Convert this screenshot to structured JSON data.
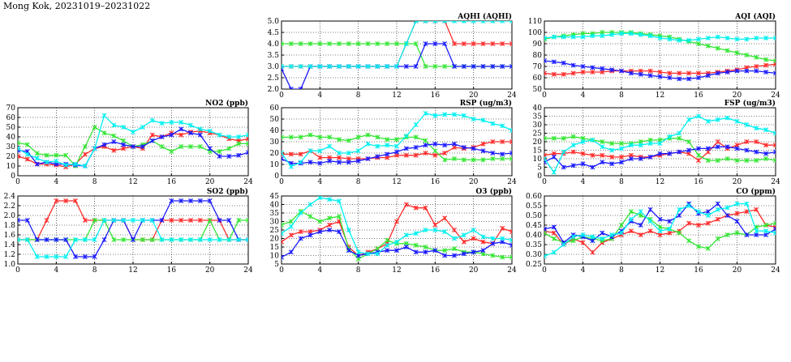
{
  "page": {
    "title": "Mong Kok, 20231019–20231022"
  },
  "chart_data": [
    {
      "type": "line",
      "title": "AQHI (AQHI)",
      "xlim": [
        0,
        24
      ],
      "ylim": [
        2.0,
        5.0
      ],
      "xticks": [
        "0",
        "4",
        "8",
        "12",
        "16",
        "20",
        "24"
      ],
      "yticks": [
        "2.0",
        "2.5",
        "3.0",
        "3.5",
        "4.0",
        "4.5",
        "5.0"
      ],
      "grid": true,
      "series": [
        {
          "color": "#ff2a2a",
          "values": [
            3,
            3,
            3,
            3,
            3,
            3,
            3,
            3,
            3,
            3,
            3,
            3,
            3,
            4,
            5,
            5,
            5,
            5,
            4,
            4,
            4,
            4,
            4,
            4,
            4
          ]
        },
        {
          "color": "#33e633",
          "values": [
            4,
            4,
            4,
            4,
            4,
            4,
            4,
            4,
            4,
            4,
            4,
            4,
            4,
            4,
            4,
            3,
            3,
            3,
            3,
            3,
            3,
            3,
            3,
            3,
            3
          ]
        },
        {
          "color": "#1a1aff",
          "values": [
            2.9,
            2,
            2,
            3,
            3,
            3,
            3,
            3,
            3,
            3,
            3,
            3,
            3,
            3,
            3,
            4,
            4,
            4,
            3,
            3,
            3,
            3,
            3,
            3,
            3
          ]
        },
        {
          "color": "#00f0f0",
          "values": [
            3,
            3,
            3,
            3,
            3,
            3,
            3,
            3,
            3,
            3,
            3,
            3,
            3,
            4,
            5,
            5,
            5,
            5,
            5,
            5,
            5,
            5,
            5,
            5,
            5
          ]
        }
      ]
    },
    {
      "type": "line",
      "title": "AQI (AQI)",
      "xlim": [
        0,
        24
      ],
      "ylim": [
        50,
        110
      ],
      "xticks": [
        "0",
        "4",
        "8",
        "12",
        "16",
        "20",
        "24"
      ],
      "yticks": [
        "50",
        "60",
        "70",
        "80",
        "90",
        "100",
        "110"
      ],
      "grid": true,
      "series": [
        {
          "color": "#ff2a2a",
          "values": [
            64,
            63,
            63,
            64,
            65,
            65,
            65,
            66,
            66,
            66,
            66,
            66,
            65,
            64,
            64,
            64,
            64,
            64,
            65,
            66,
            67,
            69,
            70,
            71,
            72
          ]
        },
        {
          "color": "#33e633",
          "values": [
            94,
            96,
            97,
            98,
            99,
            99,
            100,
            100,
            100,
            100,
            99,
            98,
            97,
            96,
            94,
            92,
            90,
            88,
            86,
            84,
            82,
            80,
            78,
            76,
            75
          ]
        },
        {
          "color": "#1a1aff",
          "values": [
            75,
            74,
            73,
            71,
            70,
            69,
            68,
            67,
            66,
            64,
            63,
            62,
            61,
            60,
            59,
            59,
            60,
            62,
            64,
            65,
            66,
            66,
            66,
            65,
            64
          ]
        },
        {
          "color": "#00f0f0",
          "values": [
            95,
            96,
            96,
            96,
            96,
            97,
            97,
            98,
            99,
            99,
            98,
            97,
            95,
            94,
            93,
            93,
            94,
            95,
            96,
            95,
            94,
            94,
            95,
            95,
            95
          ]
        }
      ]
    },
    {
      "type": "line",
      "title": "NO2 (ppb)",
      "xlim": [
        0,
        24
      ],
      "ylim": [
        0,
        70
      ],
      "xticks": [
        "0",
        "4",
        "8",
        "12",
        "16",
        "20",
        "24"
      ],
      "yticks": [
        "0",
        "10",
        "20",
        "30",
        "40",
        "50",
        "60",
        "70"
      ],
      "grid": true,
      "series": [
        {
          "color": "#ff2a2a",
          "values": [
            20,
            17,
            12,
            12,
            11,
            9,
            12,
            22,
            28,
            30,
            26,
            28,
            30,
            28,
            42,
            40,
            44,
            42,
            45,
            46,
            44,
            42,
            38,
            36,
            38
          ]
        },
        {
          "color": "#33e633",
          "values": [
            34,
            32,
            23,
            21,
            21,
            21,
            10,
            30,
            50,
            44,
            41,
            36,
            30,
            32,
            36,
            30,
            25,
            30,
            30,
            30,
            25,
            25,
            28,
            33,
            33
          ]
        },
        {
          "color": "#1a1aff",
          "values": [
            26,
            25,
            12,
            14,
            12,
            12,
            11,
            10,
            28,
            32,
            35,
            32,
            30,
            30,
            36,
            40,
            42,
            48,
            44,
            42,
            28,
            20,
            20,
            21,
            24
          ]
        },
        {
          "color": "#00f0f0",
          "values": [
            28,
            22,
            18,
            14,
            15,
            11,
            12,
            10,
            28,
            62,
            52,
            50,
            45,
            50,
            57,
            54,
            55,
            55,
            52,
            48,
            46,
            42,
            40,
            40,
            42
          ]
        }
      ]
    },
    {
      "type": "line",
      "title": "RSP (ug/m3)",
      "xlim": [
        0,
        24
      ],
      "ylim": [
        0,
        60
      ],
      "xticks": [
        "0",
        "4",
        "8",
        "12",
        "16",
        "20",
        "24"
      ],
      "yticks": [
        "0",
        "10",
        "20",
        "30",
        "40",
        "50",
        "60"
      ],
      "grid": true,
      "series": [
        {
          "color": "#ff2a2a",
          "values": [
            19,
            19,
            19,
            22,
            16,
            16,
            16,
            15,
            15,
            15,
            16,
            16,
            18,
            18,
            18,
            20,
            18,
            20,
            25,
            24,
            25,
            28,
            30,
            30,
            30
          ]
        },
        {
          "color": "#33e633",
          "values": [
            34,
            34,
            34,
            36,
            34,
            34,
            32,
            31,
            34,
            36,
            34,
            32,
            32,
            34,
            34,
            31,
            22,
            14,
            15,
            14,
            14,
            14,
            15,
            15,
            15
          ]
        },
        {
          "color": "#1a1aff",
          "values": [
            15,
            11,
            11,
            12,
            11,
            13,
            12,
            12,
            13,
            15,
            17,
            19,
            21,
            24,
            25,
            27,
            28,
            27,
            28,
            25,
            24,
            22,
            20,
            19,
            20
          ]
        },
        {
          "color": "#00f0f0",
          "values": [
            20,
            8,
            12,
            22,
            22,
            26,
            20,
            20,
            22,
            28,
            26,
            27,
            26,
            35,
            45,
            55,
            53,
            54,
            54,
            53,
            50,
            49,
            46,
            44,
            40
          ]
        }
      ]
    },
    {
      "type": "line",
      "title": "FSP (ug/m3)",
      "xlim": [
        0,
        24
      ],
      "ylim": [
        0,
        40
      ],
      "xticks": [
        "0",
        "4",
        "8",
        "12",
        "16",
        "20",
        "24"
      ],
      "yticks": [
        "0",
        "5",
        "10",
        "15",
        "20",
        "25",
        "30",
        "35",
        "40"
      ],
      "grid": true,
      "series": [
        {
          "color": "#ff2a2a",
          "values": [
            12,
            13,
            13,
            14,
            13,
            12,
            12,
            11,
            11,
            12,
            11,
            11,
            12,
            13,
            14,
            13,
            9,
            14,
            20,
            16,
            18,
            20,
            20,
            18,
            18
          ]
        },
        {
          "color": "#33e633",
          "values": [
            22,
            22,
            22,
            23,
            22,
            21,
            20,
            19,
            19,
            19,
            20,
            21,
            21,
            22,
            22,
            20,
            12,
            9,
            9,
            10,
            9,
            9,
            9,
            10,
            9
          ]
        },
        {
          "color": "#1a1aff",
          "values": [
            8,
            11,
            5,
            6,
            7,
            5,
            8,
            7,
            8,
            10,
            10,
            11,
            13,
            13,
            14,
            15,
            16,
            16,
            17,
            17,
            16,
            15,
            14,
            13,
            14
          ]
        },
        {
          "color": "#00f0f0",
          "values": [
            10,
            2,
            14,
            18,
            20,
            21,
            17,
            15,
            16,
            18,
            18,
            19,
            19,
            23,
            25,
            33,
            35,
            32,
            33,
            34,
            32,
            30,
            28,
            27,
            25
          ]
        }
      ]
    },
    {
      "type": "line",
      "title": "SO2 (ppb)",
      "xlim": [
        0,
        24
      ],
      "ylim": [
        1.0,
        2.4
      ],
      "xticks": [
        "0",
        "4",
        "8",
        "12",
        "16",
        "20",
        "24"
      ],
      "yticks": [
        "1.0",
        "1.2",
        "1.4",
        "1.6",
        "1.8",
        "2.0",
        "2.2",
        "2.4"
      ],
      "grid": true,
      "series": [
        {
          "color": "#ff2a2a",
          "values": [
            1.5,
            1.5,
            1.5,
            1.9,
            2.3,
            2.3,
            2.3,
            1.9,
            1.9,
            1.9,
            1.9,
            1.9,
            1.5,
            1.5,
            1.5,
            1.9,
            1.9,
            1.9,
            1.9,
            1.9,
            1.9,
            1.9,
            1.5,
            1.5,
            1.5
          ]
        },
        {
          "color": "#33e633",
          "values": [
            1.5,
            1.5,
            1.5,
            1.5,
            1.5,
            1.5,
            1.5,
            1.5,
            1.9,
            1.9,
            1.5,
            1.5,
            1.5,
            1.5,
            1.5,
            1.5,
            1.5,
            1.5,
            1.5,
            1.5,
            1.9,
            1.5,
            1.5,
            1.9,
            1.9
          ]
        },
        {
          "color": "#1a1aff",
          "values": [
            1.9,
            1.9,
            1.5,
            1.5,
            1.5,
            1.5,
            1.15,
            1.15,
            1.15,
            1.5,
            1.9,
            1.9,
            1.5,
            1.9,
            1.9,
            1.9,
            2.3,
            2.3,
            2.3,
            2.3,
            2.3,
            1.9,
            1.9,
            1.5,
            1.5
          ]
        },
        {
          "color": "#00f0f0",
          "values": [
            1.5,
            1.5,
            1.15,
            1.15,
            1.15,
            1.15,
            1.5,
            1.5,
            1.5,
            1.9,
            1.9,
            1.9,
            1.9,
            1.9,
            1.9,
            1.5,
            1.5,
            1.5,
            1.5,
            1.5,
            1.5,
            1.5,
            1.5,
            1.5,
            1.5
          ]
        }
      ]
    },
    {
      "type": "line",
      "title": "O3 (ppb)",
      "xlim": [
        0,
        24
      ],
      "ylim": [
        5,
        45
      ],
      "xticks": [
        "0",
        "4",
        "8",
        "12",
        "16",
        "20",
        "24"
      ],
      "yticks": [
        "5",
        "10",
        "15",
        "20",
        "25",
        "30",
        "35",
        "40",
        "45"
      ],
      "grid": true,
      "series": [
        {
          "color": "#ff2a2a",
          "values": [
            18,
            22,
            24,
            24,
            25,
            28,
            30,
            15,
            10,
            12,
            14,
            17,
            30,
            40,
            38,
            38,
            28,
            32,
            25,
            18,
            20,
            18,
            17,
            26,
            24
          ]
        },
        {
          "color": "#33e633",
          "values": [
            28,
            30,
            36,
            33,
            30,
            32,
            33,
            14,
            8,
            11,
            14,
            19,
            17,
            17,
            16,
            15,
            13,
            13,
            14,
            12,
            12,
            11,
            10,
            9,
            9
          ]
        },
        {
          "color": "#1a1aff",
          "values": [
            9,
            12,
            20,
            22,
            24,
            25,
            24,
            13,
            10,
            11,
            12,
            13,
            13,
            15,
            12,
            12,
            13,
            10,
            10,
            11,
            12,
            13,
            17,
            18,
            16
          ]
        },
        {
          "color": "#00f0f0",
          "values": [
            23,
            27,
            35,
            40,
            44,
            43,
            42,
            25,
            12,
            11,
            11,
            16,
            18,
            22,
            23,
            25,
            25,
            24,
            20,
            22,
            25,
            21,
            20,
            20,
            19
          ]
        }
      ]
    },
    {
      "type": "line",
      "title": "CO (ppm)",
      "xlim": [
        0,
        24
      ],
      "ylim": [
        0.25,
        0.6
      ],
      "xticks": [
        "0",
        "4",
        "8",
        "12",
        "16",
        "20",
        "24"
      ],
      "yticks": [
        "0.25",
        "0.30",
        "0.35",
        "0.40",
        "0.45",
        "0.50",
        "0.55",
        "0.60"
      ],
      "grid": true,
      "series": [
        {
          "color": "#ff2a2a",
          "values": [
            0.42,
            0.41,
            0.35,
            0.38,
            0.36,
            0.31,
            0.36,
            0.38,
            0.4,
            0.42,
            0.4,
            0.42,
            0.4,
            0.41,
            0.42,
            0.46,
            0.45,
            0.46,
            0.48,
            0.5,
            0.51,
            0.52,
            0.53,
            0.45,
            0.44
          ]
        },
        {
          "color": "#33e633",
          "values": [
            0.41,
            0.38,
            0.36,
            0.37,
            0.39,
            0.38,
            0.37,
            0.38,
            0.45,
            0.52,
            0.5,
            0.48,
            0.44,
            0.43,
            0.41,
            0.37,
            0.34,
            0.33,
            0.38,
            0.4,
            0.41,
            0.4,
            0.44,
            0.45,
            0.46
          ]
        },
        {
          "color": "#1a1aff",
          "values": [
            0.43,
            0.44,
            0.36,
            0.4,
            0.39,
            0.37,
            0.41,
            0.39,
            0.42,
            0.47,
            0.45,
            0.53,
            0.48,
            0.47,
            0.5,
            0.56,
            0.51,
            0.52,
            0.56,
            0.5,
            0.47,
            0.4,
            0.4,
            0.4,
            0.43
          ]
        },
        {
          "color": "#00f0f0",
          "values": [
            0.29,
            0.31,
            0.35,
            0.39,
            0.4,
            0.39,
            0.38,
            0.4,
            0.41,
            0.48,
            0.52,
            0.47,
            0.42,
            0.43,
            0.53,
            0.55,
            0.52,
            0.5,
            0.53,
            0.54,
            0.56,
            0.56,
            0.42,
            0.42,
            0.41
          ]
        }
      ]
    }
  ]
}
